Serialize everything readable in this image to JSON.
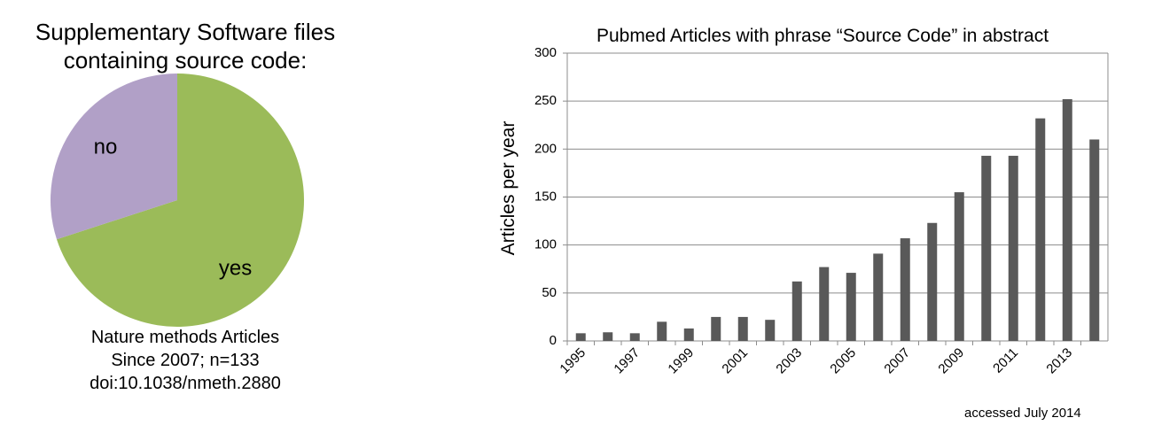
{
  "pie": {
    "title_lines": [
      "Supplementary Software files",
      "containing source code:"
    ],
    "caption_lines": [
      "Nature methods Articles",
      "Since 2007; n=133",
      "doi:10.1038/nmeth.2880"
    ]
  },
  "footnote": "accessed July 2014",
  "chart_data": [
    {
      "type": "pie",
      "slices": [
        {
          "label": "yes",
          "value": 70,
          "color": "#9bbb59"
        },
        {
          "label": "no",
          "value": 30,
          "color": "#b1a0c7"
        }
      ],
      "start_angle_deg": 0,
      "direction": "clockwise"
    },
    {
      "type": "bar",
      "title": "Pubmed Articles with phrase “Source Code” in abstract",
      "xlabel": "",
      "ylabel": "Articles per year",
      "categories": [
        "1995",
        "1996",
        "1997",
        "1998",
        "1999",
        "2000",
        "2001",
        "2002",
        "2003",
        "2004",
        "2005",
        "2006",
        "2007",
        "2008",
        "2009",
        "2010",
        "2011",
        "2012",
        "2013",
        "2014"
      ],
      "values": [
        8,
        9,
        8,
        20,
        13,
        25,
        25,
        22,
        62,
        77,
        71,
        91,
        107,
        123,
        155,
        193,
        193,
        232,
        252,
        210
      ],
      "tick_labels": [
        "1995",
        "1997",
        "1999",
        "2001",
        "2003",
        "2005",
        "2007",
        "2009",
        "2011",
        "2013"
      ],
      "yticks": [
        0,
        50,
        100,
        150,
        200,
        250,
        300
      ],
      "ylim": [
        0,
        300
      ],
      "bar_color": "#595959",
      "grid": true
    }
  ]
}
